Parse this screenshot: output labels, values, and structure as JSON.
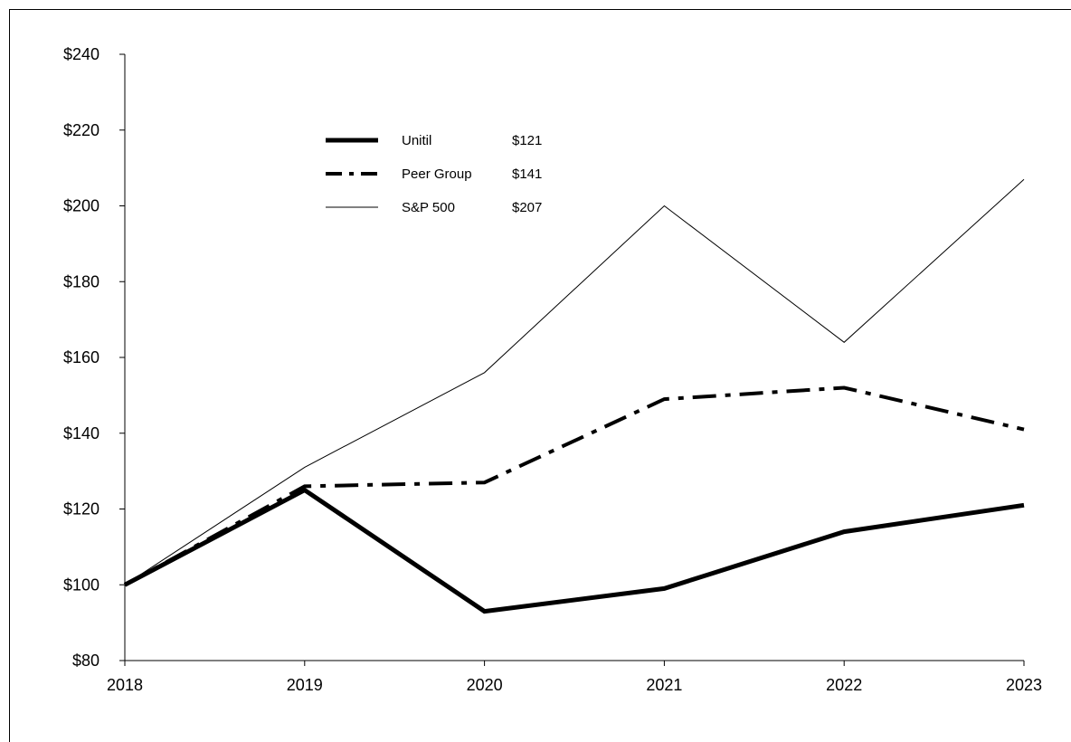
{
  "chart_data": {
    "type": "line",
    "title": "",
    "xlabel": "",
    "ylabel": "",
    "x": [
      "2018",
      "2019",
      "2020",
      "2021",
      "2022",
      "2023"
    ],
    "ylim": [
      80,
      240
    ],
    "yticks": [
      80,
      100,
      120,
      140,
      160,
      180,
      200,
      220,
      240
    ],
    "ytick_labels": [
      "$80",
      "$100",
      "$120",
      "$140",
      "$160",
      "$180",
      "$200",
      "$220",
      "$240"
    ],
    "grid": false,
    "legend_position": "top-left",
    "series": [
      {
        "name": "Unitil",
        "legend_value": "$121",
        "values": [
          100,
          125,
          93,
          99,
          114,
          121
        ],
        "style": "solid-thick",
        "color": "#000000"
      },
      {
        "name": "Peer Group",
        "legend_value": "$141",
        "values": [
          100,
          126,
          127,
          149,
          152,
          141
        ],
        "style": "dash-dot",
        "color": "#000000"
      },
      {
        "name": "S&P 500",
        "legend_value": "$207",
        "values": [
          100,
          131,
          156,
          200,
          164,
          207
        ],
        "style": "solid-thin",
        "color": "#000000"
      }
    ]
  }
}
